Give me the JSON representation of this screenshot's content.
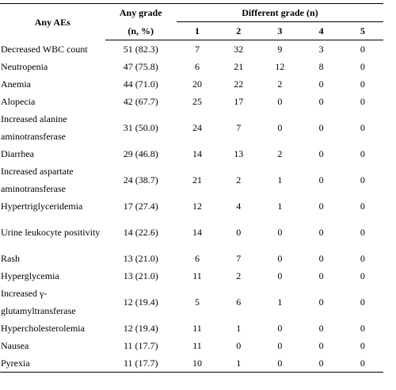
{
  "header": {
    "ae_label": "Any AEs",
    "any_grade_line1": "Any grade",
    "any_grade_line2": "(n, %)",
    "different_grade": "Different grade (n)",
    "grades": [
      "1",
      "2",
      "3",
      "4",
      "5"
    ]
  },
  "rows": [
    {
      "name": "Decreased WBC count",
      "any": "51 (82.3)",
      "g": [
        "7",
        "32",
        "9",
        "3",
        "0"
      ]
    },
    {
      "name": "Neutropenia",
      "any": "47 (75.8)",
      "g": [
        "6",
        "21",
        "12",
        "8",
        "0"
      ]
    },
    {
      "name": "Anemia",
      "any": "44 (71.0)",
      "g": [
        "20",
        "22",
        "2",
        "0",
        "0"
      ]
    },
    {
      "name": "Alopecia",
      "any": "42 (67.7)",
      "g": [
        "25",
        "17",
        "0",
        "0",
        "0"
      ]
    },
    {
      "name": "Increased alanine aminotransferase",
      "any": "31 (50.0)",
      "g": [
        "24",
        "7",
        "0",
        "0",
        "0"
      ]
    },
    {
      "name": "Diarrhea",
      "any": "29 (46.8)",
      "g": [
        "14",
        "13",
        "2",
        "0",
        "0"
      ]
    },
    {
      "name": "Increased aspartate aminotransferase",
      "any": "24 (38.7)",
      "g": [
        "21",
        "2",
        "1",
        "0",
        "0"
      ]
    },
    {
      "name": "Hypertriglyceridemia",
      "any": "17 (27.4)",
      "g": [
        "12",
        "4",
        "1",
        "0",
        "0"
      ]
    },
    {
      "name": "Urine leukocyte positivity",
      "any": "14 (22.6)",
      "g": [
        "14",
        "0",
        "0",
        "0",
        "0"
      ]
    },
    {
      "name": "Rash",
      "any": "13 (21.0)",
      "g": [
        "6",
        "7",
        "0",
        "0",
        "0"
      ]
    },
    {
      "name": "Hyperglycemia",
      "any": "13 (21.0)",
      "g": [
        "11",
        "2",
        "0",
        "0",
        "0"
      ]
    },
    {
      "name": "Increased γ-glutamyltransferase",
      "any": "12 (19.4)",
      "g": [
        "5",
        "6",
        "1",
        "0",
        "0"
      ]
    },
    {
      "name": "Hypercholesterolemia",
      "any": "12 (19.4)",
      "g": [
        "11",
        "1",
        "0",
        "0",
        "0"
      ]
    },
    {
      "name": "Nausea",
      "any": "11 (17.7)",
      "g": [
        "11",
        "0",
        "0",
        "0",
        "0"
      ]
    },
    {
      "name": "Pyrexia",
      "any": "11 (17.7)",
      "g": [
        "10",
        "1",
        "0",
        "0",
        "0"
      ]
    }
  ]
}
